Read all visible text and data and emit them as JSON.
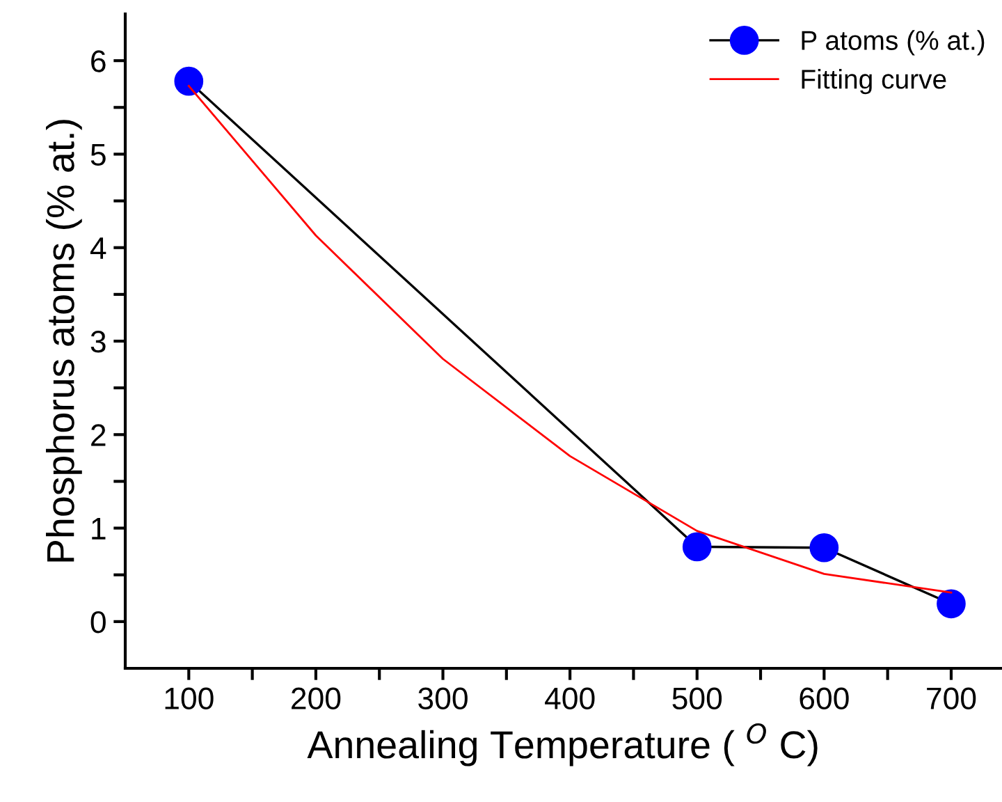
{
  "chart_data": {
    "type": "line",
    "xlabel": "Annealing Temperature ( $^{O}$ C)",
    "ylabel": "Phosphorus atoms (% at.)",
    "xlim": [
      50,
      740
    ],
    "ylim": [
      -0.5,
      6.5
    ],
    "xticks": [
      100,
      {
        "value": 150,
        "label": null
      },
      200,
      {
        "value": 250,
        "label": null
      },
      300,
      {
        "value": 350,
        "label": null
      },
      400,
      {
        "value": 450,
        "label": null
      },
      500,
      {
        "value": 550,
        "label": null
      },
      600,
      {
        "value": 650,
        "label": null
      },
      700
    ],
    "yticks": [
      0,
      {
        "value": 0.5,
        "label": null
      },
      1,
      {
        "value": 1.5,
        "label": null
      },
      2,
      {
        "value": 2.5,
        "label": null
      },
      3,
      {
        "value": 3.5,
        "label": null
      },
      4,
      {
        "value": 4.5,
        "label": null
      },
      5,
      {
        "value": 5.5,
        "label": null
      },
      6
    ],
    "grid": false,
    "legend": "top right",
    "series": [
      {
        "name": "P atoms (% at.)",
        "color": "#0000ff",
        "x": [
          100,
          500,
          600,
          700
        ],
        "values": [
          5.78,
          0.8,
          0.79,
          0.19
        ],
        "marker": "circle",
        "line_style": "solid"
      },
      {
        "name": "Fitting curve",
        "color": "#ff0000",
        "x": [
          100,
          200,
          300,
          400,
          500,
          600,
          700
        ],
        "values": [
          5.73,
          4.13,
          2.81,
          1.77,
          0.97,
          0.51,
          0.31
        ],
        "marker": "none",
        "line_style": "solid"
      }
    ]
  }
}
